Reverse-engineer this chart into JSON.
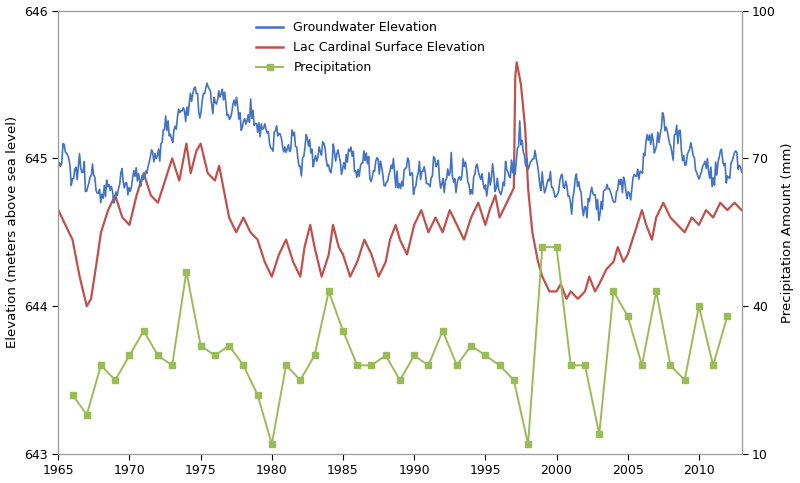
{
  "title": "",
  "ylabel_left": "Elevation (meters above sea level)",
  "ylabel_right": "Precipitation Amount (mm)",
  "xlabel": "",
  "xlim": [
    1965,
    2013
  ],
  "ylim_left": [
    643,
    646
  ],
  "ylim_right": [
    10,
    100
  ],
  "yticks_left": [
    643,
    644,
    645,
    646
  ],
  "yticks_right": [
    10,
    40,
    70,
    100
  ],
  "xticks": [
    1965,
    1970,
    1975,
    1980,
    1985,
    1990,
    1995,
    2000,
    2005,
    2010
  ],
  "color_gw": "#4472C4",
  "color_lac": "#C0504D",
  "color_precip": "#9BBB59",
  "lw_gw": 1.2,
  "lw_lac": 1.6,
  "lw_precip": 1.4,
  "marker_precip": "s",
  "marker_size": 4,
  "legend_labels": [
    "Groundwater Elevation",
    "Lac Cardinal Surface Elevation",
    "Precipitation"
  ],
  "fig_width": 8.0,
  "fig_height": 4.83,
  "background_color": "#FFFFFF",
  "spine_color": "#999999",
  "lac_years": [
    1965,
    1965.5,
    1966,
    1966.5,
    1967,
    1967.3,
    1967.7,
    1968,
    1968.5,
    1969,
    1969.5,
    1970,
    1970.5,
    1971,
    1971.5,
    1972,
    1972.5,
    1973,
    1973.5,
    1974,
    1974.3,
    1974.7,
    1975,
    1975.5,
    1976,
    1976.3,
    1976.7,
    1977,
    1977.5,
    1978,
    1978.5,
    1979,
    1979.5,
    1980,
    1980.5,
    1981,
    1981.5,
    1982,
    1982.3,
    1982.7,
    1983,
    1983.5,
    1984,
    1984.3,
    1984.7,
    1985,
    1985.5,
    1986,
    1986.5,
    1987,
    1987.5,
    1988,
    1988.3,
    1988.7,
    1989,
    1989.5,
    1990,
    1990.5,
    1991,
    1991.5,
    1992,
    1992.5,
    1993,
    1993.5,
    1994,
    1994.5,
    1995,
    1995.3,
    1995.7,
    1996,
    1996.5,
    1997,
    1997.1,
    1997.2,
    1997.5,
    1997.8,
    1998,
    1998.3,
    1998.7,
    1999,
    1999.5,
    2000,
    2000.3,
    2000.7,
    2001,
    2001.5,
    2002,
    2002.3,
    2002.7,
    2003,
    2003.5,
    2004,
    2004.3,
    2004.7,
    2005,
    2005.5,
    2006,
    2006.3,
    2006.7,
    2007,
    2007.5,
    2008,
    2008.5,
    2009,
    2009.5,
    2010,
    2010.5,
    2011,
    2011.5,
    2012,
    2012.5,
    2013
  ],
  "lac_vals": [
    644.65,
    644.55,
    644.45,
    644.2,
    644.0,
    644.05,
    644.3,
    644.5,
    644.65,
    644.75,
    644.6,
    644.55,
    644.75,
    644.9,
    644.75,
    644.7,
    644.85,
    645.0,
    644.85,
    645.1,
    644.9,
    645.05,
    645.1,
    644.9,
    644.85,
    644.95,
    644.75,
    644.6,
    644.5,
    644.6,
    644.5,
    644.45,
    644.3,
    644.2,
    644.35,
    644.45,
    644.3,
    644.2,
    644.4,
    644.55,
    644.4,
    644.2,
    644.35,
    644.55,
    644.4,
    644.35,
    644.2,
    644.3,
    644.45,
    644.35,
    644.2,
    644.3,
    644.45,
    644.55,
    644.45,
    644.35,
    644.55,
    644.65,
    644.5,
    644.6,
    644.5,
    644.65,
    644.55,
    644.45,
    644.6,
    644.7,
    644.55,
    644.65,
    644.75,
    644.6,
    644.7,
    644.8,
    645.55,
    645.65,
    645.5,
    645.2,
    644.8,
    644.5,
    644.3,
    644.2,
    644.1,
    644.1,
    644.15,
    644.05,
    644.1,
    644.05,
    644.1,
    644.2,
    644.1,
    644.15,
    644.25,
    644.3,
    644.4,
    644.3,
    644.35,
    644.5,
    644.65,
    644.55,
    644.45,
    644.6,
    644.7,
    644.6,
    644.55,
    644.5,
    644.6,
    644.55,
    644.65,
    644.6,
    644.7,
    644.65,
    644.7,
    644.65
  ],
  "precip_years": [
    1966,
    1967,
    1968,
    1969,
    1970,
    1971,
    1972,
    1973,
    1974,
    1975,
    1976,
    1977,
    1978,
    1979,
    1980,
    1981,
    1982,
    1983,
    1984,
    1985,
    1986,
    1987,
    1988,
    1989,
    1990,
    1991,
    1992,
    1993,
    1994,
    1995,
    1996,
    1997,
    1998,
    1999,
    2000,
    2001,
    2002,
    2003,
    2004,
    2005,
    2006,
    2007,
    2008,
    2009,
    2010,
    2011,
    2012
  ],
  "precip_mm": [
    22,
    18,
    28,
    25,
    30,
    35,
    30,
    28,
    47,
    32,
    30,
    32,
    28,
    22,
    12,
    28,
    25,
    30,
    43,
    35,
    28,
    28,
    30,
    25,
    30,
    28,
    35,
    28,
    32,
    30,
    28,
    25,
    12,
    52,
    52,
    28,
    28,
    14,
    43,
    38,
    28,
    43,
    28,
    25,
    40,
    28,
    38
  ]
}
